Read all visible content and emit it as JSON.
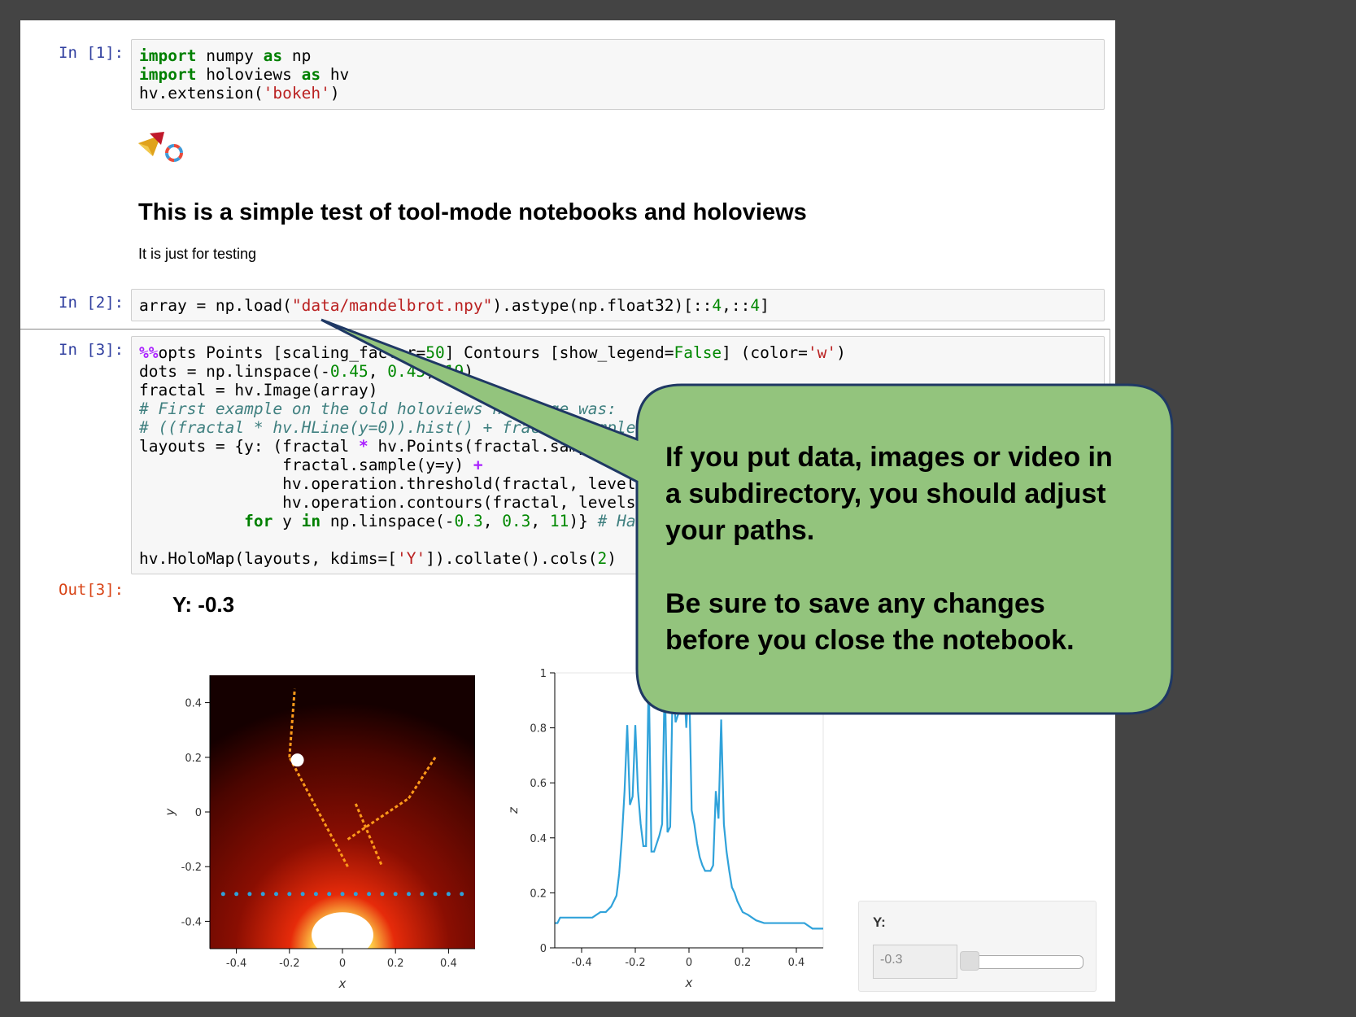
{
  "cells": {
    "c1": {
      "prompt": "In [1]:"
    },
    "c2": {
      "prompt": "In [2]:"
    },
    "c3": {
      "prompt": "In [3]:",
      "out_prompt": "Out[3]:"
    }
  },
  "markdown": {
    "heading": "This is a simple test of tool-mode notebooks and holoviews",
    "paragraph": "It is just for testing"
  },
  "output": {
    "title": "Y: -0.3",
    "widget": {
      "label": "Y:",
      "value": "-0.3",
      "slider_fraction": 0.0
    }
  },
  "callout": {
    "line1": "If you put data, images or video in a subdirectory, you should adjust your paths.",
    "line2": "Be sure to save any changes before you close the notebook.",
    "fill": "#93c47d",
    "stroke": "#1f3864"
  },
  "icons": [
    "holoviews-logo-icon",
    "bokeh-logo-icon"
  ],
  "chart_data": [
    {
      "type": "heatmap",
      "xlabel": "x",
      "ylabel": "y",
      "xlim": [
        -0.5,
        0.5
      ],
      "ylim": [
        -0.5,
        0.5
      ],
      "xticks": [
        "-0.4",
        "-0.2",
        "0",
        "0.2",
        "0.4"
      ],
      "yticks": [
        "-0.4",
        "-0.2",
        "0",
        "0.2",
        "0.4"
      ],
      "colormap": "fire",
      "overlay_points": {
        "y": -0.3,
        "x": [
          -0.45,
          -0.4,
          -0.35,
          -0.3,
          -0.25,
          -0.2,
          -0.15,
          -0.1,
          -0.05,
          0,
          0.05,
          0.1,
          0.15,
          0.2,
          0.25,
          0.3,
          0.35,
          0.4,
          0.45
        ],
        "color": "#30a2da"
      }
    },
    {
      "type": "line",
      "xlabel": "x",
      "ylabel": "z",
      "xlim": [
        -0.5,
        0.5
      ],
      "ylim": [
        0,
        1
      ],
      "xticks": [
        "-0.4",
        "-0.2",
        "0",
        "0.2",
        "0.4"
      ],
      "yticks": [
        "0",
        "0.2",
        "0.4",
        "0.6",
        "0.8",
        "1"
      ],
      "color": "#30a2da",
      "series": [
        {
          "x": [
            -0.5,
            -0.49,
            -0.48,
            -0.45,
            -0.42,
            -0.39,
            -0.36,
            -0.33,
            -0.31,
            -0.29,
            -0.27,
            -0.26,
            -0.25,
            -0.24,
            -0.23,
            -0.22,
            -0.21,
            -0.2,
            -0.19,
            -0.18,
            -0.17,
            -0.16,
            -0.15,
            -0.14,
            -0.13,
            -0.12,
            -0.11,
            -0.1,
            -0.09,
            -0.08,
            -0.07,
            -0.06,
            -0.05,
            -0.04,
            -0.03,
            -0.02,
            -0.01,
            0,
            0.01,
            0.02,
            0.03,
            0.04,
            0.05,
            0.06,
            0.07,
            0.08,
            0.09,
            0.1,
            0.11,
            0.12,
            0.13,
            0.14,
            0.15,
            0.16,
            0.17,
            0.18,
            0.2,
            0.22,
            0.25,
            0.28,
            0.31,
            0.34,
            0.37,
            0.4,
            0.43,
            0.46,
            0.5
          ],
          "y": [
            0.09,
            0.09,
            0.11,
            0.11,
            0.11,
            0.11,
            0.11,
            0.13,
            0.13,
            0.15,
            0.19,
            0.27,
            0.4,
            0.57,
            0.81,
            0.52,
            0.55,
            0.81,
            0.57,
            0.45,
            0.37,
            0.37,
            1.0,
            0.35,
            0.35,
            0.38,
            0.41,
            0.45,
            1.0,
            0.42,
            0.44,
            1.0,
            0.82,
            0.85,
            1.0,
            1.0,
            0.8,
            1.0,
            0.5,
            0.45,
            0.38,
            0.33,
            0.3,
            0.28,
            0.28,
            0.28,
            0.3,
            0.57,
            0.47,
            0.83,
            0.45,
            0.35,
            0.28,
            0.22,
            0.2,
            0.17,
            0.13,
            0.12,
            0.1,
            0.09,
            0.09,
            0.09,
            0.09,
            0.09,
            0.09,
            0.07,
            0.07
          ]
        }
      ]
    }
  ]
}
